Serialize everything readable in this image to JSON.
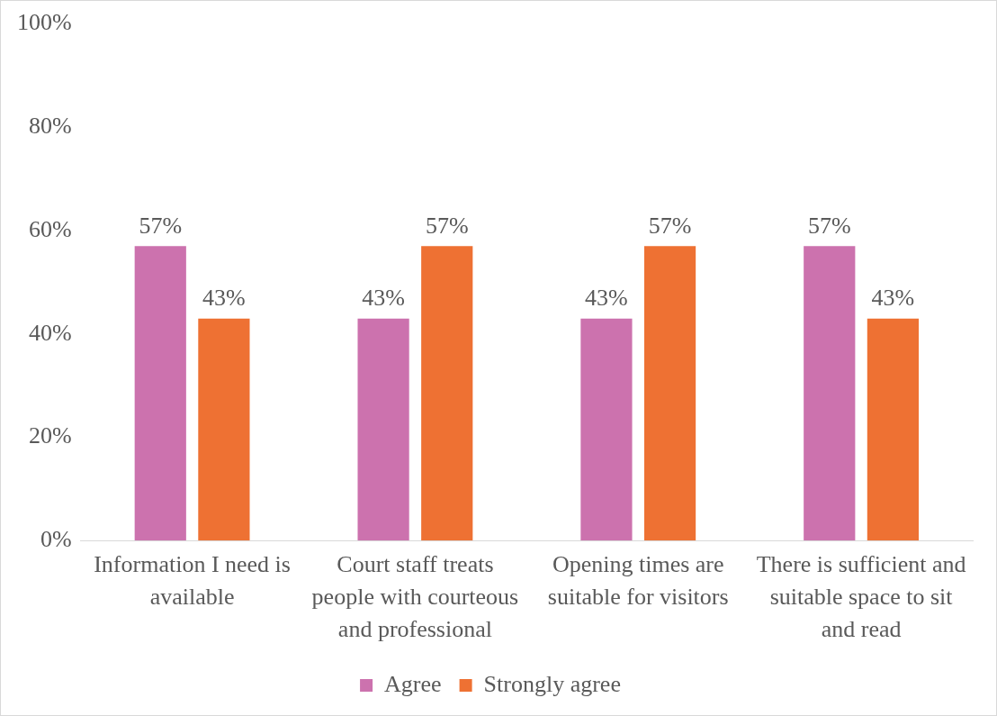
{
  "chart_data": {
    "type": "bar",
    "categories": [
      "Information I need is available",
      "Court staff treats people with courteous and professional",
      "Opening times are suitable for visitors",
      "There is sufficient and suitable space to sit and read"
    ],
    "series": [
      {
        "name": "Agree",
        "color": "#cc72ae",
        "values": [
          57,
          43,
          43,
          57
        ],
        "value_labels": [
          "57%",
          "43%",
          "43%",
          "57%"
        ]
      },
      {
        "name": "Strongly agree",
        "color": "#ee7133",
        "values": [
          43,
          57,
          57,
          43
        ],
        "value_labels": [
          "43%",
          "57%",
          "57%",
          "43%"
        ]
      }
    ],
    "ylim": [
      0,
      100
    ],
    "yticks": [
      {
        "value": 0,
        "label": "0%"
      },
      {
        "value": 20,
        "label": "20%"
      },
      {
        "value": 40,
        "label": "40%"
      },
      {
        "value": 60,
        "label": "60%"
      },
      {
        "value": 80,
        "label": "80%"
      },
      {
        "value": 100,
        "label": "100%"
      }
    ],
    "grid": false,
    "legend": "bottom"
  }
}
